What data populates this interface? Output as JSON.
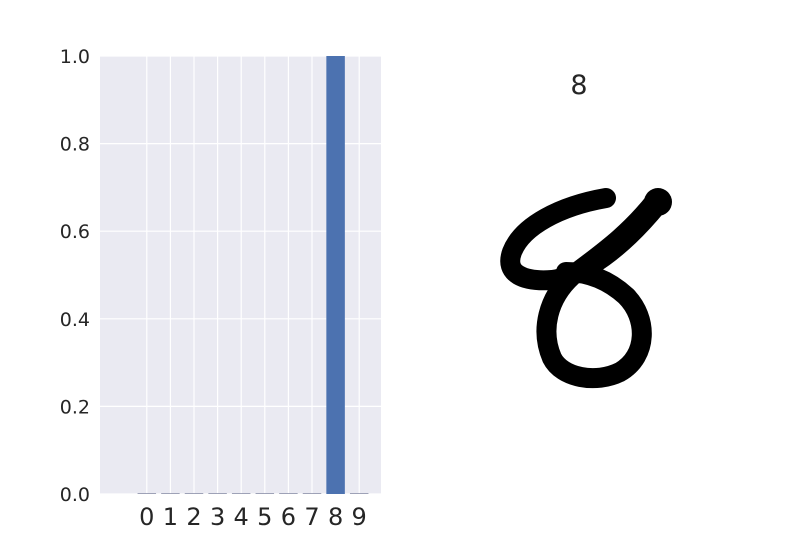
{
  "chart_data": {
    "type": "bar",
    "categories": [
      "0",
      "1",
      "2",
      "3",
      "4",
      "5",
      "6",
      "7",
      "8",
      "9"
    ],
    "values": [
      0.0,
      0.0,
      0.0,
      0.0,
      0.0,
      0.0,
      0.0,
      0.0,
      1.0,
      0.0
    ],
    "yticks": [
      "0.0",
      "0.2",
      "0.4",
      "0.6",
      "0.8",
      "1.0"
    ],
    "ylim": [
      0,
      1
    ],
    "grid": true,
    "bar_color": "#4c72b0",
    "background_color": "#eaeaf2",
    "title": "",
    "xlabel": "",
    "ylabel": ""
  },
  "image_panel": {
    "title": "8",
    "image": "handwritten-digit-eight"
  }
}
